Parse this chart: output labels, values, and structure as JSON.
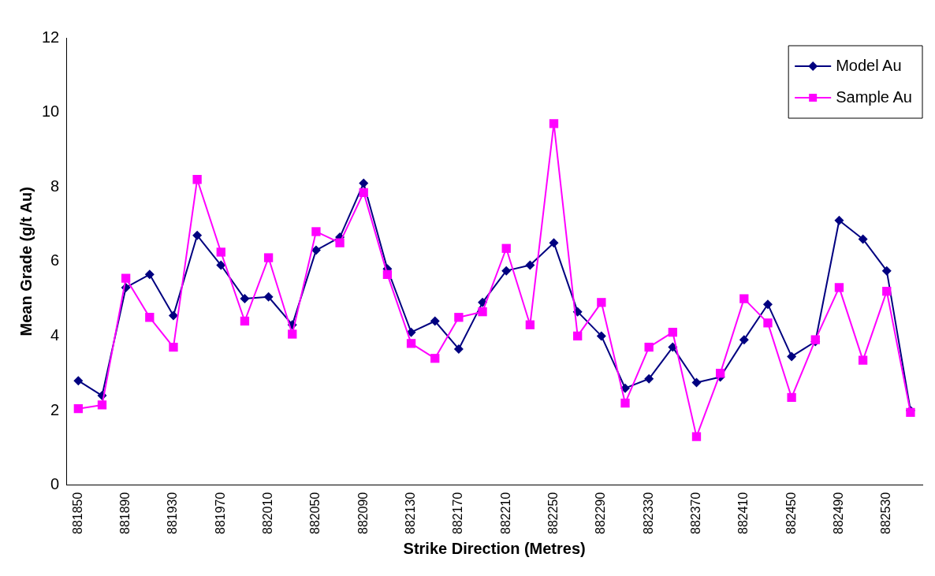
{
  "chart_data": {
    "type": "line",
    "xlabel": "Strike Direction (Metres)",
    "ylabel": "Mean Grade (g/t Au)",
    "categories": [
      "881850",
      null,
      "881890",
      null,
      "881930",
      null,
      "881970",
      null,
      "882010",
      null,
      "882050",
      null,
      "882090",
      null,
      "882130",
      null,
      "882170",
      null,
      "882210",
      null,
      "882250",
      null,
      "882290",
      null,
      "882330",
      null,
      "882370",
      null,
      "882410",
      null,
      "882450",
      null,
      "882490",
      null,
      "882530",
      null
    ],
    "series": [
      {
        "name": "Model Au",
        "color": "#000080",
        "marker": "diamond",
        "values": [
          2.8,
          2.4,
          5.3,
          5.65,
          4.55,
          6.7,
          5.9,
          5.0,
          5.05,
          4.3,
          6.3,
          6.65,
          8.1,
          5.8,
          4.1,
          4.4,
          3.65,
          4.9,
          5.75,
          5.9,
          6.5,
          4.65,
          4.0,
          2.6,
          2.85,
          3.7,
          2.75,
          2.9,
          3.9,
          4.85,
          3.45,
          3.85,
          7.1,
          6.6,
          5.75,
          2.0
        ]
      },
      {
        "name": "Sample Au",
        "color": "#ff00ff",
        "marker": "square",
        "values": [
          2.05,
          2.15,
          5.55,
          4.5,
          3.7,
          8.2,
          6.25,
          4.4,
          6.1,
          4.05,
          6.8,
          6.5,
          7.85,
          5.65,
          3.8,
          3.4,
          4.5,
          4.65,
          6.35,
          4.3,
          9.7,
          4.0,
          4.9,
          2.2,
          3.7,
          4.1,
          1.3,
          3.0,
          5.0,
          4.35,
          2.35,
          3.9,
          5.3,
          3.35,
          5.2,
          1.95
        ]
      }
    ],
    "ylim": [
      0,
      12
    ],
    "yticks": [
      0,
      2,
      4,
      6,
      8,
      10,
      12
    ],
    "grid": false,
    "legend": "top right",
    "line_style": "solid"
  }
}
